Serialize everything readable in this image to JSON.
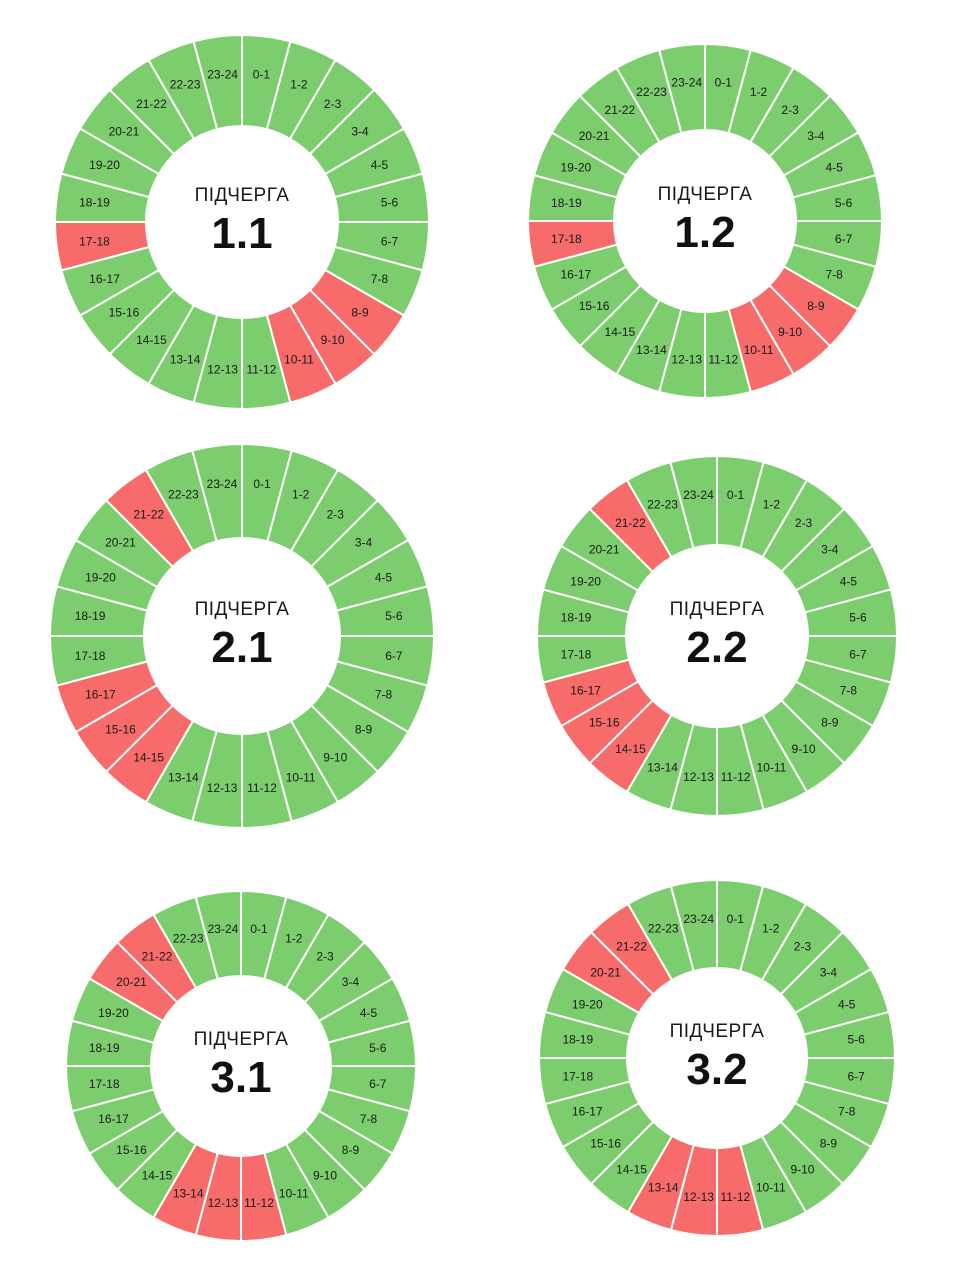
{
  "colors": {
    "on": "#7ccd6e",
    "off": "#f76b6b",
    "hub": "#ffffff"
  },
  "hour_labels": [
    "0-1",
    "1-2",
    "2-3",
    "3-4",
    "4-5",
    "5-6",
    "6-7",
    "7-8",
    "8-9",
    "9-10",
    "10-11",
    "11-12",
    "12-13",
    "13-14",
    "14-15",
    "15-16",
    "16-17",
    "17-18",
    "18-19",
    "19-20",
    "20-21",
    "21-22",
    "22-23",
    "23-24"
  ],
  "queues": [
    {
      "title": "ПІДЧЕРГА",
      "number": "1.1",
      "outage_hours": [
        8,
        9,
        10,
        17
      ]
    },
    {
      "title": "ПІДЧЕРГА",
      "number": "1.2",
      "outage_hours": [
        8,
        9,
        10,
        17
      ]
    },
    {
      "title": "ПІДЧЕРГА",
      "number": "2.1",
      "outage_hours": [
        14,
        15,
        16,
        21
      ]
    },
    {
      "title": "ПІДЧЕРГА",
      "number": "2.2",
      "outage_hours": [
        14,
        15,
        16,
        21
      ]
    },
    {
      "title": "ПІДЧЕРГА",
      "number": "3.1",
      "outage_hours": [
        11,
        12,
        13,
        20,
        21
      ]
    },
    {
      "title": "ПІДЧЕРГА",
      "number": "3.2",
      "outage_hours": [
        11,
        12,
        13,
        20,
        21
      ]
    }
  ]
}
